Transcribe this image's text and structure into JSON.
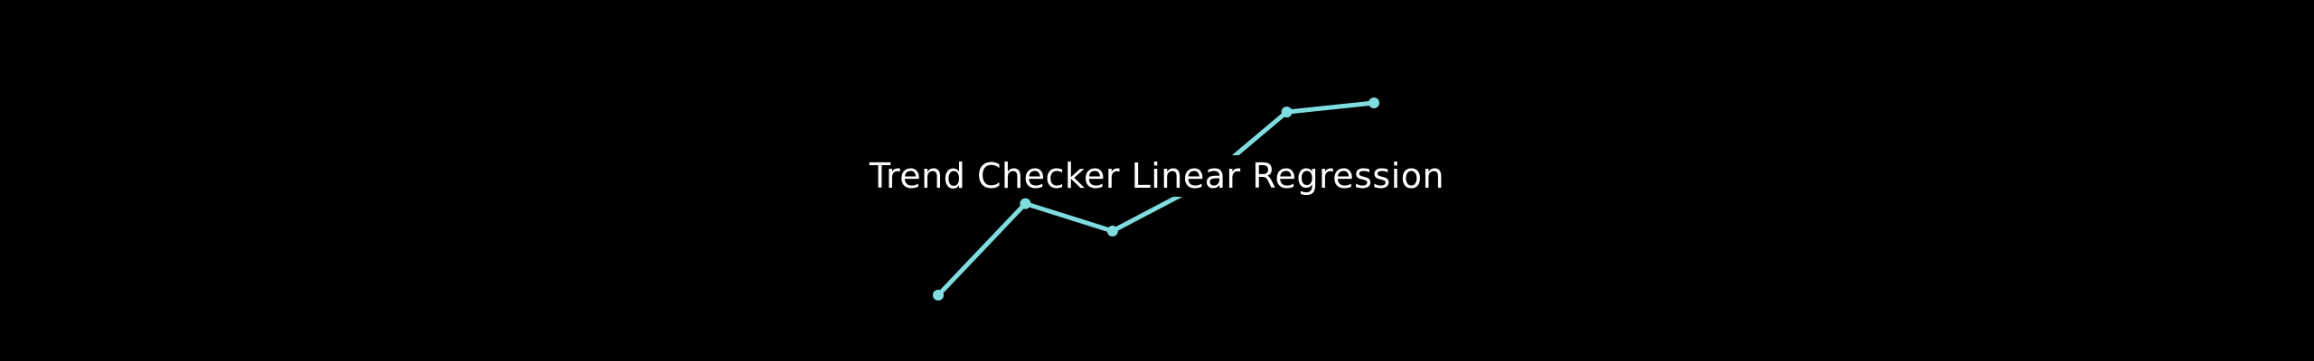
{
  "app": {
    "title": "Trend Checker Linear Regression"
  },
  "colors": {
    "background": "#000000",
    "title_text": "#ffffff",
    "trend_line": "#7fdde0"
  },
  "chart_data": {
    "type": "line",
    "title": "",
    "xlabel": "",
    "ylabel": "",
    "grid": false,
    "legend": "none",
    "x": [
      1,
      2,
      3,
      4,
      5,
      6
    ],
    "series": [
      {
        "values": [
          0,
          1,
          0.7,
          1.2,
          2.0,
          2.1
        ]
      }
    ],
    "ylim": [
      0,
      2.1
    ]
  }
}
